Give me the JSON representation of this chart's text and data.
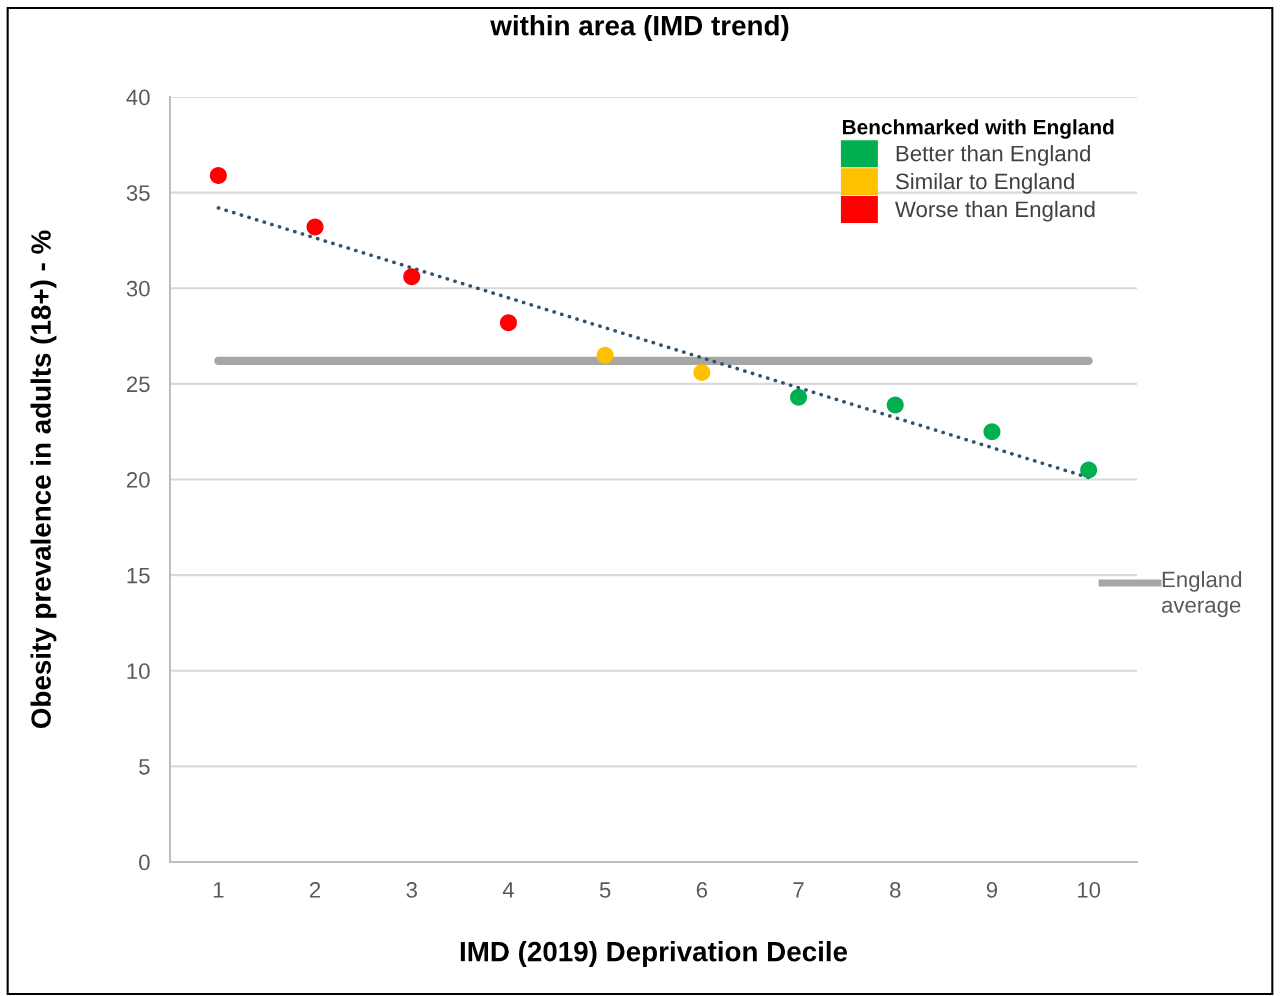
{
  "chart_data": {
    "type": "scatter",
    "title": "within area (IMD trend)",
    "xlabel": "IMD (2019) Deprivation Decile",
    "ylabel": "Obesity prevalence in adults (18+) - %",
    "legend_title": "Benchmarked with England",
    "x": [
      1,
      2,
      3,
      4,
      5,
      6,
      7,
      8,
      9,
      10
    ],
    "series": [
      {
        "name": "Better than England",
        "color": "#00b050",
        "values": [
          null,
          null,
          null,
          null,
          null,
          null,
          24.3,
          23.9,
          22.5,
          20.5
        ]
      },
      {
        "name": "Similar to England",
        "color": "#ffc000",
        "values": [
          null,
          null,
          null,
          null,
          26.5,
          25.6,
          null,
          null,
          null,
          null
        ]
      },
      {
        "name": "Worse than England",
        "color": "#ff0000",
        "values": [
          35.9,
          33.2,
          30.6,
          28.2,
          null,
          null,
          null,
          null,
          null,
          null
        ]
      },
      {
        "type": "line",
        "marker": "none",
        "color": "#2e5370",
        "line_style": "dotted",
        "x": [
          1,
          10
        ],
        "values": [
          34.2,
          20.1
        ]
      }
    ],
    "ref_lines": [
      {
        "axis": "y",
        "value": 26.2,
        "label": "England average",
        "color": "#a6a6a6"
      }
    ],
    "xlim": [
      0.5,
      10.5
    ],
    "xticks": [
      1,
      2,
      3,
      4,
      5,
      6,
      7,
      8,
      9,
      10
    ],
    "ylim": [
      0,
      40
    ],
    "yticks": [
      0,
      5,
      10,
      15,
      20,
      25,
      30,
      35,
      40
    ],
    "grid": "y",
    "legend": "top right",
    "marker": "circle"
  }
}
